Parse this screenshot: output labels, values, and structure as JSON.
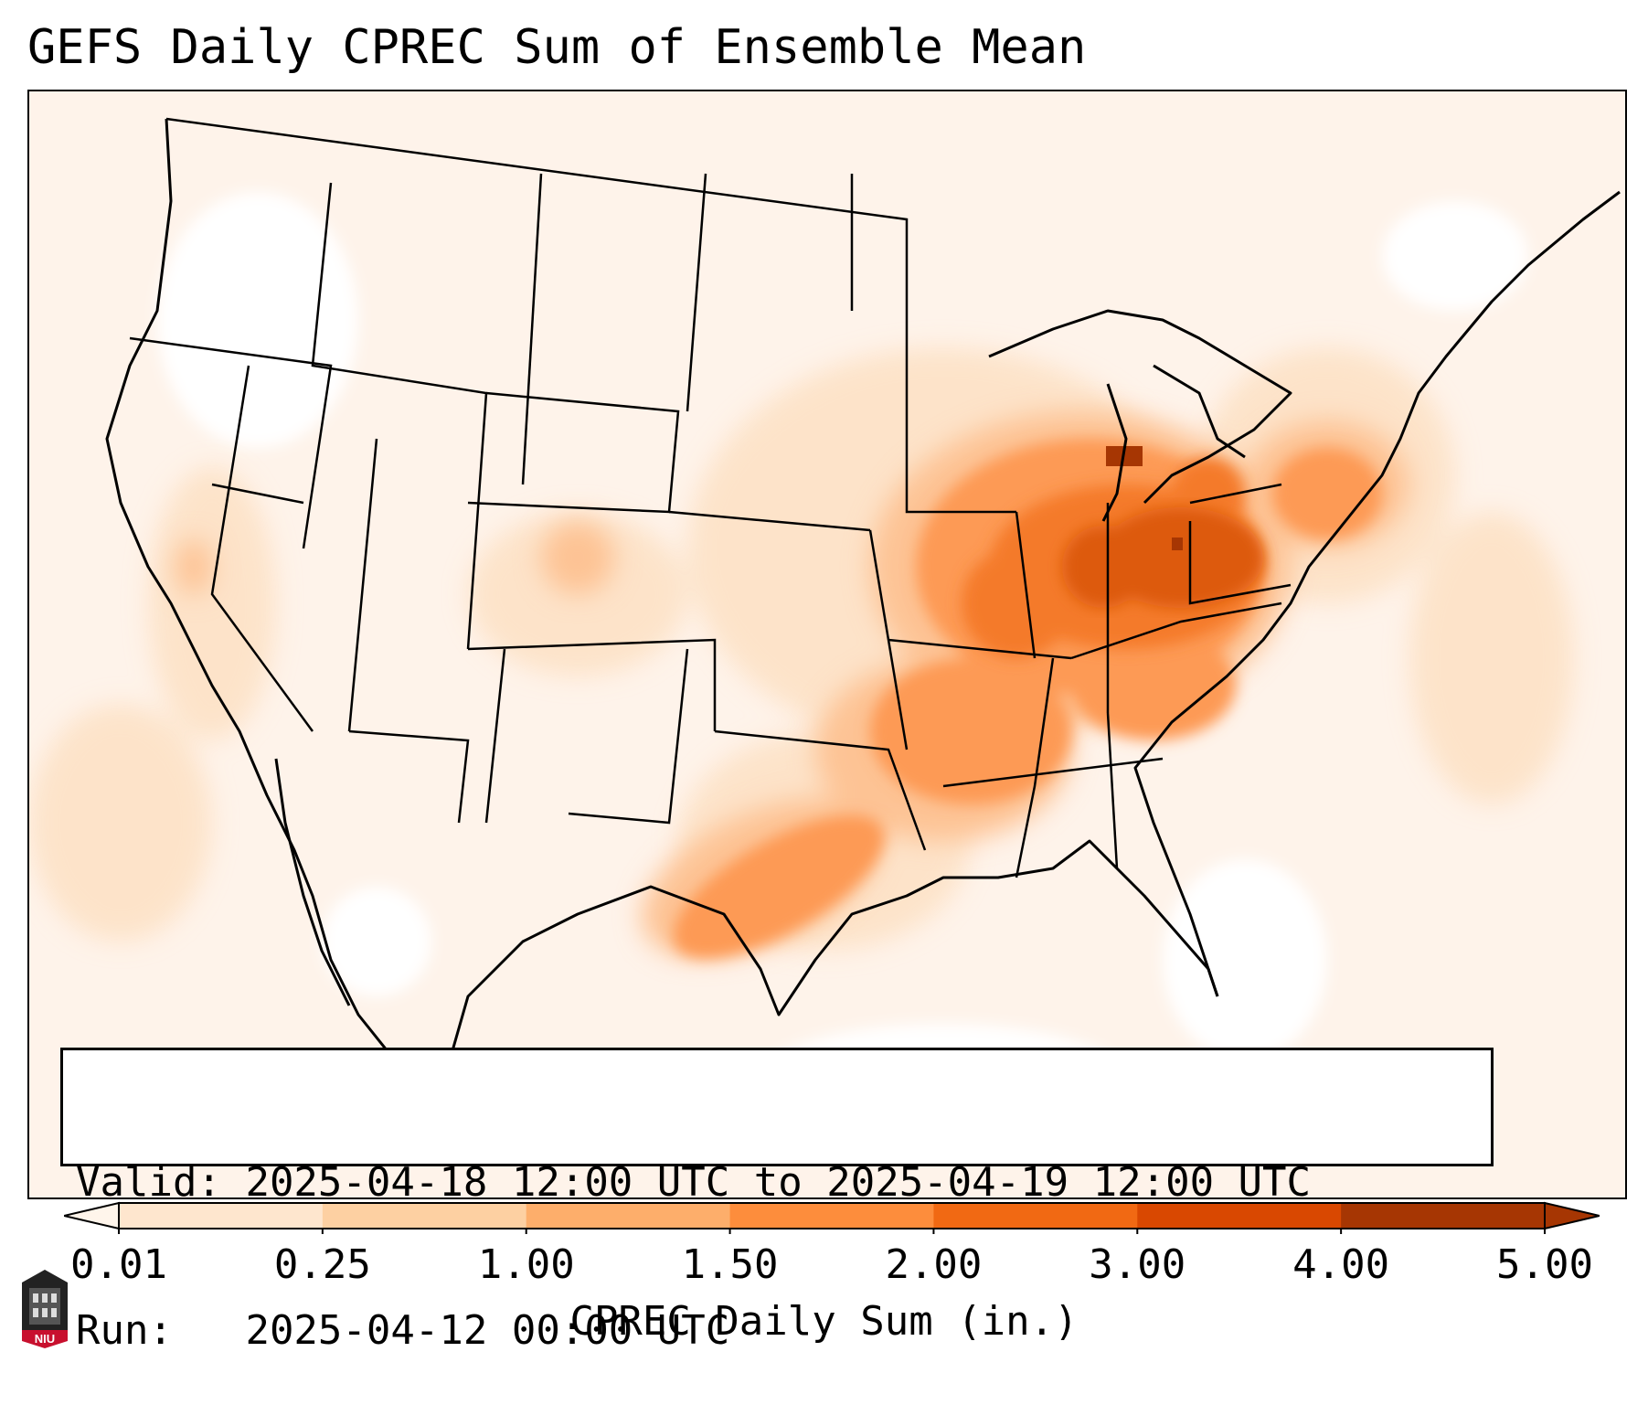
{
  "title": "GEFS Daily CPREC Sum of Ensemble Mean",
  "info": {
    "valid_label": "Valid:",
    "valid_value": "2025-04-18 12:00 UTC to 2025-04-19 12:00 UTC",
    "run_label": "Run:",
    "run_value": "2025-04-12 00:00 UTC"
  },
  "colorbar": {
    "label": "CPREC Daily Sum (in.)",
    "ticks": [
      "0.01",
      "0.25",
      "1.00",
      "1.50",
      "2.00",
      "3.00",
      "4.00",
      "5.00"
    ],
    "colors": [
      "#fff5eb",
      "#fee6ce",
      "#fdd0a2",
      "#fdae6b",
      "#fd8d3c",
      "#f16913",
      "#d94801",
      "#a63603"
    ],
    "extend": "both"
  },
  "logo": {
    "text": "NIU",
    "color": "#c8102e"
  },
  "map": {
    "region": "Continental United States",
    "field": "CPREC daily sum",
    "heaviest_area": "Ohio Valley / Indiana / Michigan"
  }
}
